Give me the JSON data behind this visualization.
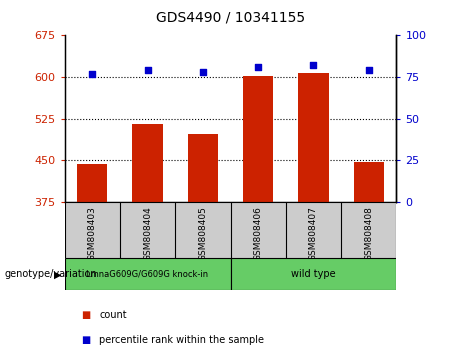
{
  "title": "GDS4490 / 10341155",
  "samples": [
    "GSM808403",
    "GSM808404",
    "GSM808405",
    "GSM808406",
    "GSM808407",
    "GSM808408"
  ],
  "counts": [
    443,
    515,
    497,
    601,
    608,
    447
  ],
  "percentile_ranks": [
    77,
    79,
    78,
    81,
    82,
    79
  ],
  "ylim_left": [
    375,
    675
  ],
  "yticks_left": [
    375,
    450,
    525,
    600,
    675
  ],
  "ylim_right": [
    0,
    100
  ],
  "yticks_right": [
    0,
    25,
    50,
    75,
    100
  ],
  "bar_color": "#cc2200",
  "dot_color": "#0000cc",
  "bar_width": 0.55,
  "bg_color": "#cccccc",
  "group1_label": "LmnaG609G/G609G knock-in",
  "group2_label": "wild type",
  "group1_color": "#66cc66",
  "group2_color": "#66cc66",
  "legend_count_color": "#cc2200",
  "legend_pct_color": "#0000cc",
  "axis_label_color_left": "#cc2200",
  "axis_label_color_right": "#0000cc",
  "grid_yticks": [
    450,
    525,
    600
  ],
  "dot_size": 25
}
